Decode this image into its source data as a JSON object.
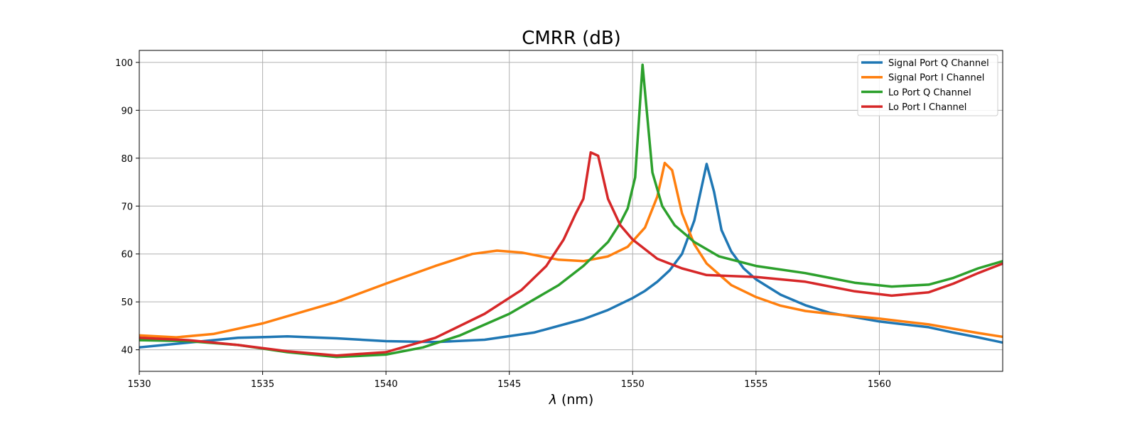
{
  "chart_data": {
    "type": "line",
    "title": "CMRR (dB)",
    "xlabel_symbol": "λ",
    "xlabel_unit": " (nm)",
    "ylabel": "",
    "xlim": [
      1530,
      1565
    ],
    "ylim": [
      35.5,
      102.5
    ],
    "xticks": [
      1530,
      1535,
      1540,
      1545,
      1550,
      1555,
      1560
    ],
    "yticks": [
      40,
      50,
      60,
      70,
      80,
      90,
      100
    ],
    "grid": true,
    "legend_position": "top-right",
    "series": [
      {
        "name": "Signal Port Q Channel",
        "color": "#1f77b4",
        "x": [
          1530,
          1532,
          1534,
          1536,
          1538,
          1540,
          1542,
          1544,
          1546,
          1548,
          1549,
          1550,
          1550.5,
          1551,
          1551.5,
          1552,
          1552.5,
          1553,
          1553.3,
          1553.6,
          1554,
          1554.5,
          1555,
          1556,
          1557,
          1558,
          1560,
          1562,
          1563,
          1564,
          1565
        ],
        "y": [
          40.5,
          41.5,
          42.5,
          42.8,
          42.4,
          41.8,
          41.6,
          42.1,
          43.6,
          46.4,
          48.3,
          50.8,
          52.3,
          54.2,
          56.6,
          60.0,
          67.0,
          78.8,
          73.0,
          65.0,
          60.5,
          57.0,
          54.7,
          51.5,
          49.3,
          47.7,
          45.9,
          44.7,
          43.6,
          42.6,
          41.5
        ]
      },
      {
        "name": "Signal Port I Channel",
        "color": "#ff7f0e",
        "x": [
          1530,
          1531.5,
          1533,
          1535,
          1538,
          1540,
          1542,
          1543.5,
          1544.5,
          1545.5,
          1547,
          1548,
          1549,
          1549.8,
          1550.5,
          1551,
          1551.3,
          1551.6,
          1552,
          1552.5,
          1553,
          1554,
          1555,
          1556,
          1557,
          1558,
          1560,
          1562,
          1563,
          1564,
          1565
        ],
        "y": [
          43.0,
          42.6,
          43.3,
          45.5,
          50.0,
          53.8,
          57.5,
          60.0,
          60.7,
          60.3,
          58.8,
          58.5,
          59.5,
          61.5,
          65.5,
          72.0,
          79.0,
          77.5,
          68.5,
          62.0,
          58.0,
          53.5,
          51.0,
          49.2,
          48.1,
          47.5,
          46.5,
          45.3,
          44.4,
          43.5,
          42.7
        ]
      },
      {
        "name": "Lo Port Q Channel",
        "color": "#2ca02c",
        "x": [
          1530,
          1532,
          1534,
          1536,
          1538,
          1540,
          1541.5,
          1543,
          1545,
          1547,
          1548,
          1549,
          1549.5,
          1549.8,
          1550.1,
          1550.4,
          1550.8,
          1551.2,
          1551.7,
          1552.5,
          1553.5,
          1555,
          1557,
          1559,
          1560.5,
          1562,
          1563,
          1564,
          1565
        ],
        "y": [
          42.0,
          41.8,
          41.0,
          39.5,
          38.5,
          39.0,
          40.5,
          43.0,
          47.5,
          53.5,
          57.5,
          62.5,
          66.5,
          69.5,
          76.0,
          99.5,
          77.0,
          70.0,
          66.0,
          62.5,
          59.5,
          57.5,
          56.0,
          54.0,
          53.2,
          53.6,
          55.0,
          57.0,
          58.5
        ]
      },
      {
        "name": "Lo Port I Channel",
        "color": "#d62728",
        "x": [
          1530,
          1532,
          1534,
          1536,
          1538,
          1540,
          1542,
          1544,
          1545.5,
          1546.5,
          1547.2,
          1547.7,
          1548.0,
          1548.3,
          1548.6,
          1549,
          1549.5,
          1550,
          1551,
          1552,
          1553,
          1555,
          1557,
          1559,
          1560.5,
          1562,
          1563,
          1564,
          1565
        ],
        "y": [
          42.5,
          42.0,
          41.0,
          39.7,
          38.8,
          39.5,
          42.5,
          47.5,
          52.5,
          57.5,
          63.0,
          68.5,
          71.5,
          81.2,
          80.5,
          71.5,
          66.0,
          63.0,
          59.0,
          57.0,
          55.6,
          55.2,
          54.2,
          52.2,
          51.3,
          52.0,
          53.8,
          56.0,
          58.0
        ]
      }
    ]
  }
}
